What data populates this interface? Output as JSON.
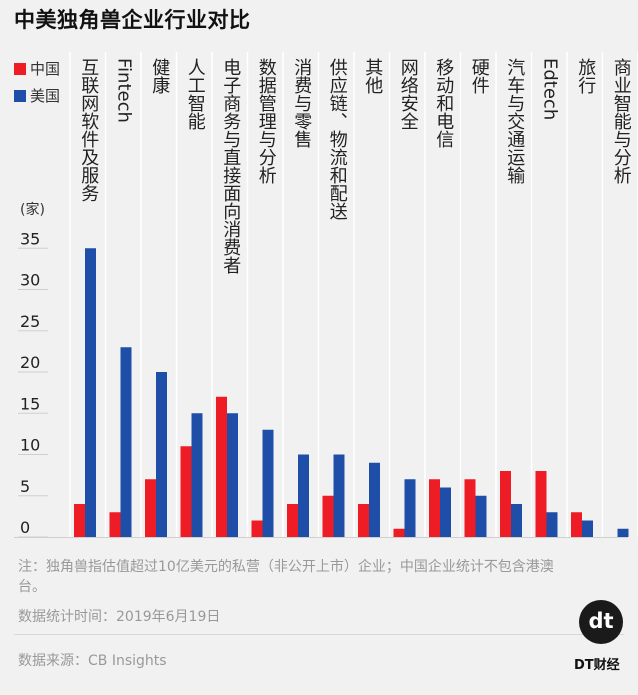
{
  "title": "中美独角兽企业行业对比",
  "chart_data": {
    "type": "bar",
    "ylabel": "(家)",
    "ylim": [
      0,
      35
    ],
    "yticks": [
      0,
      5,
      10,
      15,
      20,
      25,
      30,
      35
    ],
    "grid": false,
    "legend_position": "top-left",
    "categories": [
      "互联网软件及服务",
      "Fintech",
      "健康",
      "人工智能",
      "电子商务与直接面向消费者",
      "数据管理与分析",
      "消费与零售",
      "供应链、物流和配送",
      "其他",
      "网络安全",
      "移动和电信",
      "硬件",
      "汽车与交通运输",
      "Edtech",
      "旅行",
      "商业智能与分析"
    ],
    "series": [
      {
        "name": "中国",
        "color": "#ee1c25",
        "values": [
          4,
          3,
          7,
          11,
          17,
          2,
          4,
          5,
          4,
          1,
          7,
          7,
          8,
          8,
          3,
          0
        ]
      },
      {
        "name": "美国",
        "color": "#1f4ea8",
        "values": [
          35,
          23,
          20,
          15,
          15,
          13,
          10,
          10,
          9,
          7,
          6,
          5,
          4,
          3,
          2,
          1
        ]
      }
    ]
  },
  "footer": {
    "note": "注：独角兽指估值超过10亿美元的私营（非公开上市）企业；中国企业统计不包含港澳台。",
    "date": "数据统计时间：2019年6月19日",
    "source": "数据来源：CB Insights"
  },
  "brand": {
    "mark": "dt",
    "name": "DT财经"
  }
}
